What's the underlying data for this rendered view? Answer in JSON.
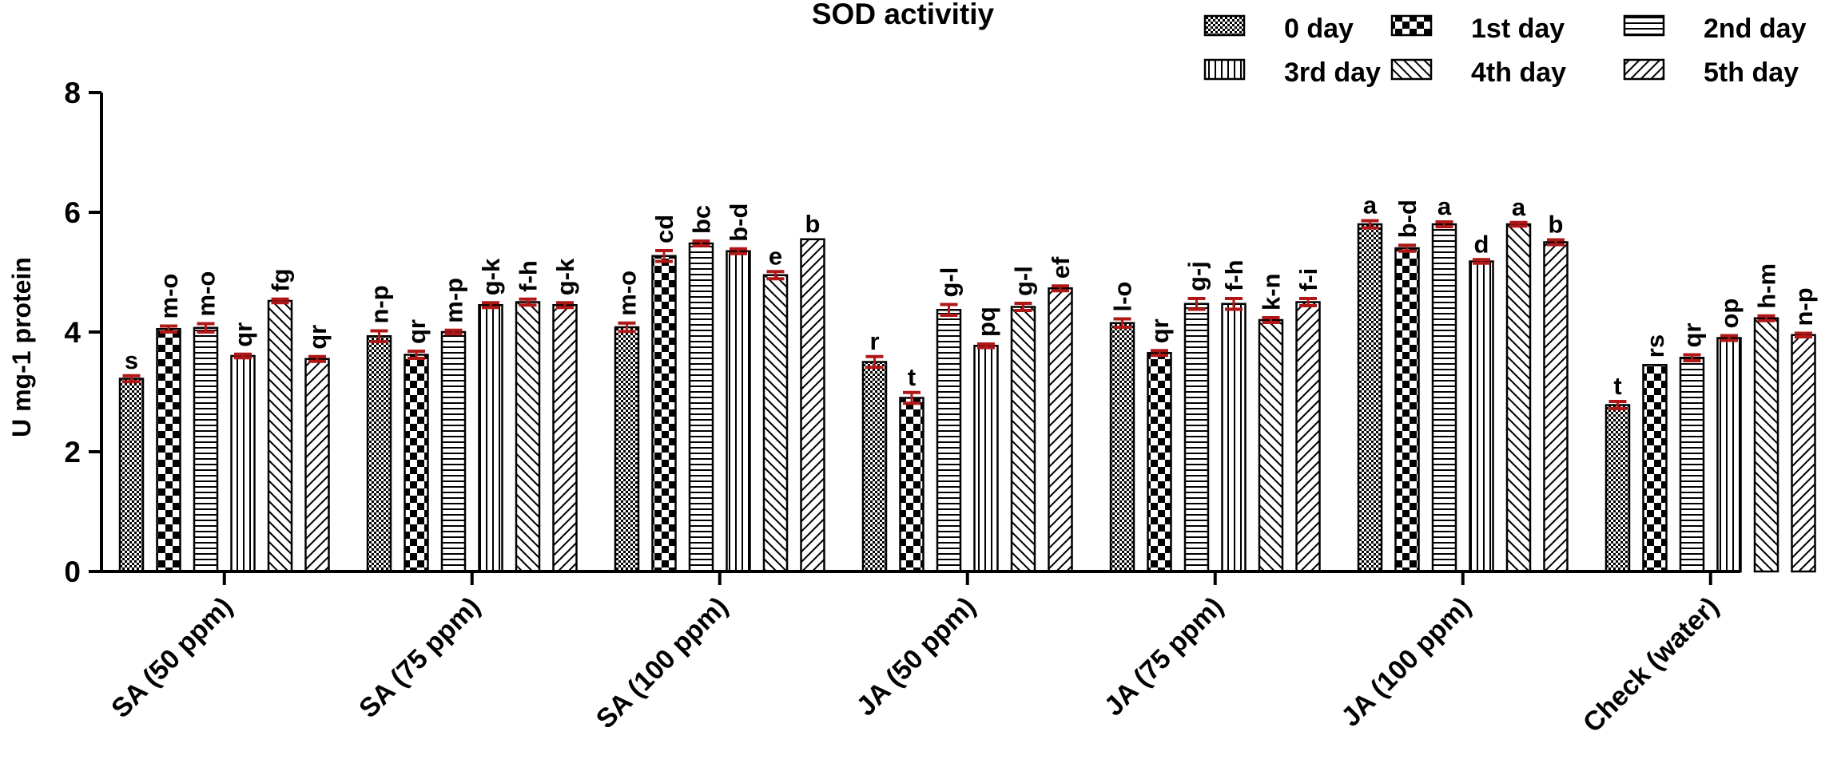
{
  "chart_data": {
    "type": "bar",
    "title": "SOD activitiy",
    "xlabel": "",
    "ylabel": "U mg-1 protein",
    "ylim": [
      0,
      8
    ],
    "yticks": [
      "0",
      "2",
      "4",
      "6",
      "8"
    ],
    "categories": [
      "SA (50 ppm)",
      "SA (75 ppm)",
      "SA (100 ppm)",
      "JA (50 ppm)",
      "JA (75 ppm)",
      "JA (100 ppm)",
      "Check (water)"
    ],
    "series": [
      {
        "name": "0 day",
        "pattern": "dots",
        "values": [
          3.22,
          3.93,
          4.08,
          3.5,
          4.15,
          5.8,
          2.78
        ],
        "errors": [
          0.05,
          0.09,
          0.07,
          0.09,
          0.07,
          0.06,
          0.06
        ],
        "letters": [
          "s",
          "n-p",
          "m-o",
          "r",
          "l-o",
          "a",
          "t"
        ]
      },
      {
        "name": "1st day",
        "pattern": "checker",
        "values": [
          4.05,
          3.62,
          5.27,
          2.9,
          3.65,
          5.4,
          3.45
        ],
        "errors": [
          0.05,
          0.06,
          0.09,
          0.09,
          0.04,
          0.05,
          0.0
        ],
        "letters": [
          "m-o",
          "qr",
          "cd",
          "t",
          "qr",
          "b-d",
          "rs"
        ]
      },
      {
        "name": "2nd day",
        "pattern": "hlines",
        "values": [
          4.07,
          4.0,
          5.48,
          4.37,
          4.47,
          5.8,
          3.57
        ],
        "errors": [
          0.07,
          0.03,
          0.04,
          0.09,
          0.09,
          0.04,
          0.05
        ],
        "letters": [
          "m-o",
          "m-p",
          "bc",
          "g-l",
          "g-j",
          "a",
          "qr"
        ]
      },
      {
        "name": "3rd day",
        "pattern": "vlines",
        "values": [
          3.6,
          4.45,
          5.35,
          3.77,
          4.47,
          5.18,
          3.9
        ],
        "errors": [
          0.03,
          0.04,
          0.04,
          0.03,
          0.09,
          0.03,
          0.04
        ],
        "letters": [
          "qr",
          "g-k",
          "b-d",
          "pq",
          "f-h",
          "d",
          "op"
        ]
      },
      {
        "name": "4th day",
        "pattern": "diag",
        "values": [
          4.52,
          4.5,
          4.95,
          4.42,
          4.2,
          5.8,
          4.23
        ],
        "errors": [
          0.03,
          0.05,
          0.06,
          0.06,
          0.04,
          0.03,
          0.04
        ],
        "letters": [
          "fg",
          "f-h",
          "e",
          "g-l",
          "k-n",
          "a",
          "h-m"
        ]
      },
      {
        "name": "5th day",
        "pattern": "antidiag",
        "values": [
          3.55,
          4.45,
          5.55,
          4.73,
          4.5,
          5.5,
          3.95
        ],
        "errors": [
          0.04,
          0.04,
          0.0,
          0.04,
          0.06,
          0.04,
          0.03
        ],
        "letters": [
          "qr",
          "g-k",
          "b",
          "ef",
          "f-i",
          "b",
          "n-p"
        ]
      }
    ],
    "legend_position": "top-right",
    "colors": {
      "error_bar": "#b01818",
      "ink": "#000000"
    }
  }
}
